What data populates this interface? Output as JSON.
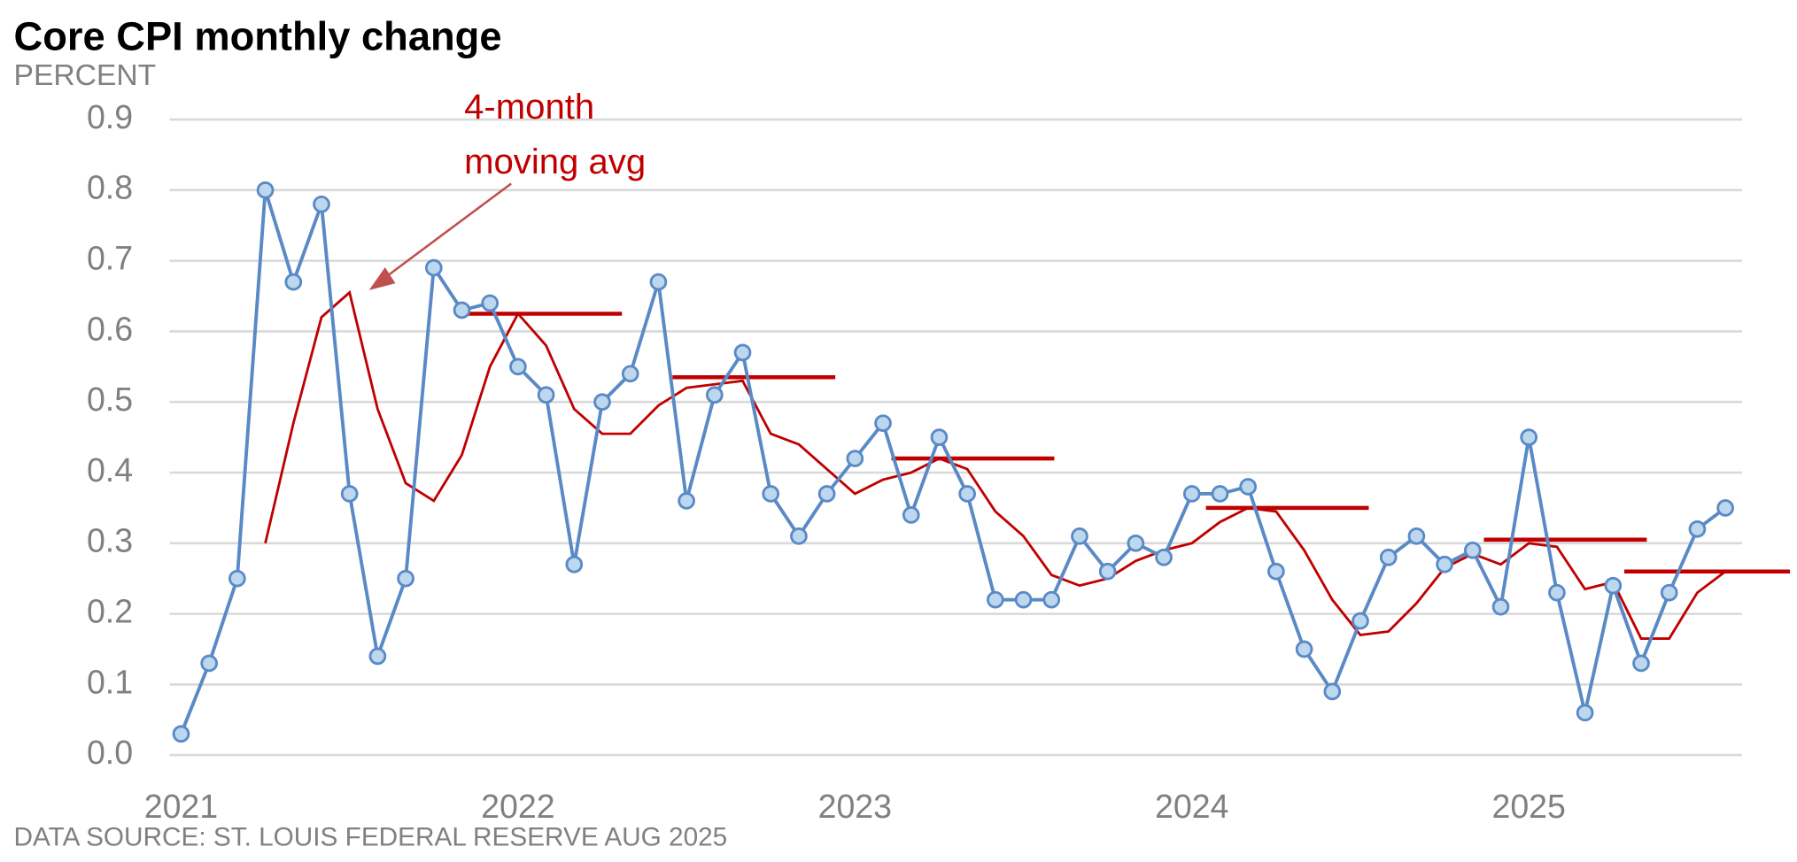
{
  "chart_data": {
    "type": "line",
    "title": "Core CPI monthly change",
    "subtitle": "PERCENT",
    "source": "DATA SOURCE: ST. LOUIS FEDERAL RESERVE AUG 2025",
    "annotation": {
      "lines": [
        "4-month",
        "moving avg"
      ],
      "color": "#c00000"
    },
    "categories": [
      "2021",
      null,
      null,
      null,
      null,
      null,
      null,
      null,
      null,
      null,
      null,
      null,
      "2022",
      null,
      null,
      null,
      null,
      null,
      null,
      null,
      null,
      null,
      null,
      null,
      "2023",
      null,
      null,
      null,
      null,
      null,
      null,
      null,
      null,
      null,
      null,
      null,
      "2024",
      null,
      null,
      null,
      null,
      null,
      null,
      null,
      null,
      null,
      null,
      null,
      "2025",
      null,
      null,
      null,
      null,
      null,
      null,
      null
    ],
    "series": [
      {
        "color": "#5a8ac6",
        "marker_fill": "#bdd7ee",
        "markers": true,
        "values": [
          0.03,
          0.13,
          0.25,
          0.8,
          0.67,
          0.78,
          0.37,
          0.14,
          0.25,
          0.69,
          0.63,
          0.64,
          0.55,
          0.51,
          0.27,
          0.5,
          0.54,
          0.67,
          0.36,
          0.51,
          0.57,
          0.37,
          0.31,
          0.37,
          0.42,
          0.47,
          0.34,
          0.45,
          0.37,
          0.22,
          0.22,
          0.22,
          0.31,
          0.26,
          0.3,
          0.28,
          0.37,
          0.37,
          0.38,
          0.26,
          0.15,
          0.09,
          0.19,
          0.28,
          0.31,
          0.27,
          0.29,
          0.21,
          0.45,
          0.23,
          0.06,
          0.24,
          0.13,
          0.23,
          0.32,
          0.35
        ]
      },
      {
        "color": "#c00000",
        "markers": false,
        "values": [
          null,
          null,
          null,
          0.3,
          0.47,
          0.62,
          0.655,
          0.49,
          0.385,
          0.36,
          0.425,
          0.55,
          0.625,
          0.58,
          0.49,
          0.455,
          0.455,
          0.495,
          0.52,
          0.525,
          0.53,
          0.455,
          0.44,
          0.405,
          0.37,
          0.39,
          0.4,
          0.42,
          0.405,
          0.345,
          0.31,
          0.255,
          0.24,
          0.25,
          0.275,
          0.29,
          0.3,
          0.33,
          0.35,
          0.345,
          0.29,
          0.22,
          0.17,
          0.175,
          0.215,
          0.265,
          0.285,
          0.27,
          0.3,
          0.295,
          0.235,
          0.245,
          0.165,
          0.165,
          0.23,
          0.26
        ]
      }
    ],
    "reference_lines": {
      "color": "#c00000",
      "values": [
        0.625,
        0.535,
        0.42,
        0.35,
        0.305,
        0.26
      ]
    },
    "ylim": [
      0,
      0.9
    ],
    "yticks": [
      {
        "value": 0,
        "label": "0.0"
      },
      0.1,
      0.2,
      0.3,
      0.4,
      0.5,
      0.6,
      0.7,
      0.8,
      0.9
    ],
    "grid": true
  }
}
